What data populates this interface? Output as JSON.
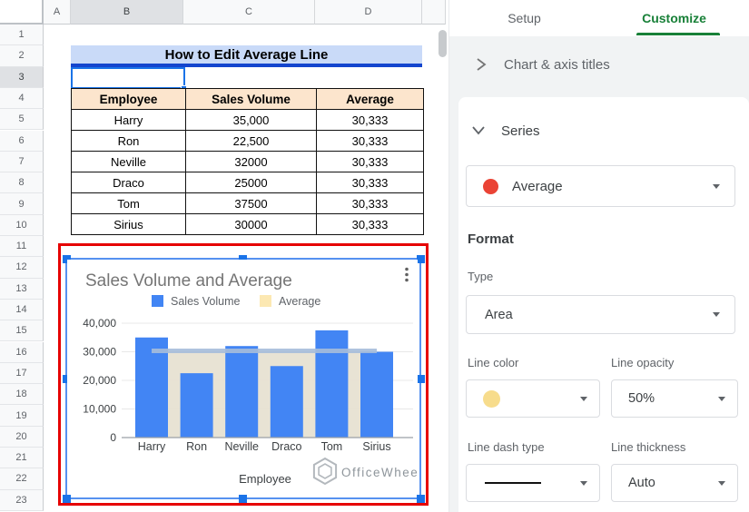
{
  "spreadsheet": {
    "column_headers": [
      "A",
      "B",
      "C",
      "D"
    ],
    "selected_column": "B",
    "selected_row": 3,
    "row_numbers": [
      1,
      2,
      3,
      4,
      5,
      6,
      7,
      8,
      9,
      10,
      11,
      12,
      13,
      14,
      15,
      16,
      17,
      18,
      19,
      20,
      21,
      22,
      23
    ],
    "title_banner": "How to Edit Average Line",
    "table": {
      "headers": [
        "Employee",
        "Sales Volume",
        "Average"
      ],
      "rows": [
        [
          "Harry",
          "35,000",
          "30,333"
        ],
        [
          "Ron",
          "22,500",
          "30,333"
        ],
        [
          "Neville",
          "32000",
          "30,333"
        ],
        [
          "Draco",
          "25000",
          "30,333"
        ],
        [
          "Tom",
          "37500",
          "30,333"
        ],
        [
          "Sirius",
          "30000",
          "30,333"
        ]
      ]
    }
  },
  "chart_data": {
    "type": "combo",
    "title": "Sales Volume and Average",
    "categories": [
      "Harry",
      "Ron",
      "Neville",
      "Draco",
      "Tom",
      "Sirius"
    ],
    "series": [
      {
        "name": "Sales Volume",
        "type": "bar",
        "color": "#4285F4",
        "values": [
          35000,
          22500,
          32000,
          25000,
          37500,
          30000
        ]
      },
      {
        "name": "Average",
        "type": "area",
        "color": "#FCE8B2",
        "area_fill": "#E7E1D2",
        "edge_line_color": "#A6BCDA",
        "values": [
          30333,
          30333,
          30333,
          30333,
          30333,
          30333
        ]
      }
    ],
    "xlabel": "Employee",
    "ylabel": "",
    "ylim": [
      0,
      40000
    ],
    "yticks": [
      0,
      10000,
      20000,
      30000,
      40000
    ],
    "ytick_labels": [
      "0",
      "10,000",
      "20,000",
      "30,000",
      "40,000"
    ],
    "legend_position": "top",
    "grid": true,
    "watermark": "OfficeWheel"
  },
  "panel": {
    "tabs": {
      "setup": "Setup",
      "customize": "Customize"
    },
    "chart_axis_titles_label": "Chart & axis titles",
    "series_section_label": "Series",
    "series_selected": "Average",
    "series_dot_color": "#EA4335",
    "format": {
      "heading": "Format",
      "type_label": "Type",
      "type_value": "Area",
      "line_color_label": "Line color",
      "line_color_value": "#F7DC8C",
      "line_opacity_label": "Line opacity",
      "line_opacity_value": "50%",
      "line_dash_label": "Line dash type",
      "line_thickness_label": "Line thickness",
      "line_thickness_value": "Auto"
    }
  },
  "colors": {
    "accent_blue": "#1A73E8",
    "customize_green": "#188038",
    "banner_bg": "#C9DAF8",
    "table_header_bg": "#FCE5CD",
    "annotation_red": "#E60000"
  }
}
